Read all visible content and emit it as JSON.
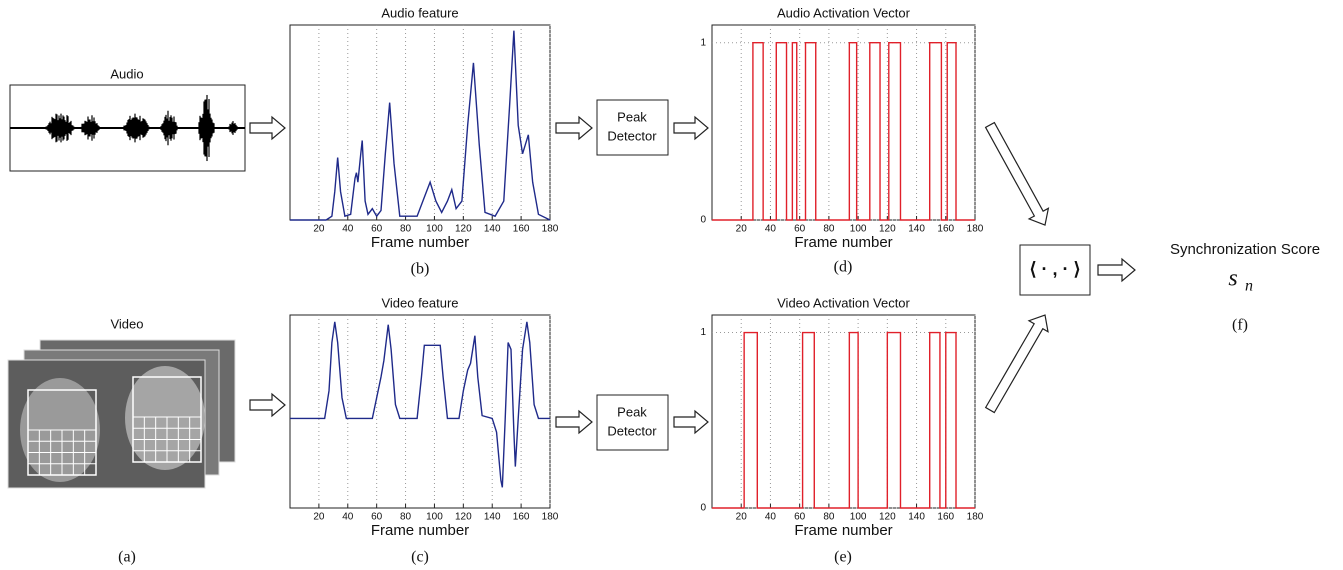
{
  "inputs": {
    "audio": "Audio",
    "video": "Video"
  },
  "panel_labels": [
    "(a)",
    "(b)",
    "(c)",
    "(d)",
    "(e)",
    "(f)"
  ],
  "peak_detectors": [
    [
      "Peak",
      "Detector"
    ],
    [
      "Peak",
      "Detector"
    ]
  ],
  "inner_product": "⟨ · , · ⟩",
  "score": {
    "label": "Synchronization Score",
    "symbol": "s",
    "subscript": "n"
  },
  "chart_data": [
    {
      "type": "line",
      "title": "Audio feature",
      "xlabel": "Frame number",
      "color": "#1f2a8a",
      "xlim": [
        0,
        180
      ],
      "ylim": [
        0,
        1.03
      ],
      "xticks": [
        20,
        40,
        60,
        80,
        100,
        120,
        140,
        160,
        180
      ],
      "grid": true,
      "x": [
        0,
        25,
        29,
        31,
        33,
        35,
        38,
        42,
        45,
        46,
        47,
        49,
        50,
        52,
        54,
        57,
        60,
        63,
        66,
        69,
        72,
        76,
        88,
        93,
        97,
        101,
        105,
        109,
        112,
        115,
        119,
        123,
        127,
        131,
        135,
        142,
        148,
        152,
        155,
        158,
        161,
        163,
        165,
        168,
        172,
        180
      ],
      "values": [
        0,
        0,
        0.02,
        0.15,
        0.33,
        0.15,
        0.02,
        0.03,
        0.22,
        0.25,
        0.2,
        0.35,
        0.42,
        0.1,
        0.03,
        0.06,
        0.02,
        0.05,
        0.35,
        0.62,
        0.3,
        0.02,
        0.02,
        0.12,
        0.2,
        0.1,
        0.04,
        0.1,
        0.16,
        0.06,
        0.1,
        0.5,
        0.83,
        0.4,
        0.04,
        0.02,
        0.1,
        0.6,
        1.0,
        0.5,
        0.35,
        0.4,
        0.45,
        0.2,
        0.03,
        0
      ]
    },
    {
      "type": "line",
      "title": "Video feature",
      "xlabel": "Frame number",
      "color": "#1f2a8a",
      "xlim": [
        0,
        180
      ],
      "ylim": [
        -0.35,
        1.05
      ],
      "xticks": [
        20,
        40,
        60,
        80,
        100,
        120,
        140,
        160,
        180
      ],
      "grid": true,
      "x": [
        0,
        24,
        27,
        29,
        31,
        33,
        36,
        39,
        57,
        60,
        63,
        65,
        68,
        70,
        73,
        76,
        88,
        91,
        93,
        104,
        106,
        109,
        117,
        120,
        123,
        125,
        128,
        130,
        133,
        140,
        143,
        146,
        147,
        149,
        151,
        153,
        155,
        156,
        158,
        161,
        164,
        166,
        169,
        172,
        180
      ],
      "values": [
        0.3,
        0.3,
        0.5,
        0.85,
        1.0,
        0.85,
        0.45,
        0.3,
        0.3,
        0.45,
        0.6,
        0.72,
        0.98,
        0.8,
        0.4,
        0.3,
        0.3,
        0.6,
        0.83,
        0.83,
        0.6,
        0.3,
        0.3,
        0.5,
        0.65,
        0.7,
        0.9,
        0.6,
        0.32,
        0.3,
        0.2,
        -0.15,
        -0.2,
        0.3,
        0.85,
        0.8,
        0.2,
        -0.05,
        0.3,
        0.8,
        1.0,
        0.85,
        0.4,
        0.3,
        0.3
      ]
    },
    {
      "type": "line",
      "title": "Audio Activation Vector",
      "xlabel": "Frame number",
      "color": "#e0202a",
      "xlim": [
        0,
        180
      ],
      "ylim": [
        0,
        1.1
      ],
      "xticks": [
        20,
        40,
        60,
        80,
        100,
        120,
        140,
        160,
        180
      ],
      "yticks": [
        0,
        1
      ],
      "grid": true,
      "x": [
        0,
        28,
        28,
        35,
        35,
        44,
        44,
        51,
        51,
        55,
        55,
        58,
        58,
        64,
        64,
        71,
        71,
        94,
        94,
        99,
        99,
        108,
        108,
        115,
        115,
        121,
        121,
        129,
        129,
        149,
        149,
        157,
        157,
        161,
        161,
        167,
        167,
        180
      ],
      "values": [
        0,
        0,
        1,
        1,
        0,
        0,
        1,
        1,
        0,
        0,
        1,
        1,
        0,
        0,
        1,
        1,
        0,
        0,
        1,
        1,
        0,
        0,
        1,
        1,
        0,
        0,
        1,
        1,
        0,
        0,
        1,
        1,
        0,
        0,
        1,
        1,
        0,
        0
      ]
    },
    {
      "type": "line",
      "title": "Video Activation Vector",
      "xlabel": "Frame number",
      "color": "#e0202a",
      "xlim": [
        0,
        180
      ],
      "ylim": [
        0,
        1.1
      ],
      "xticks": [
        20,
        40,
        60,
        80,
        100,
        120,
        140,
        160,
        180
      ],
      "yticks": [
        0,
        1
      ],
      "grid": true,
      "x": [
        0,
        22,
        22,
        31,
        31,
        62,
        62,
        70,
        70,
        94,
        94,
        100,
        100,
        120,
        120,
        129,
        129,
        149,
        149,
        156,
        156,
        160,
        160,
        167,
        167,
        180
      ],
      "values": [
        0,
        0,
        1,
        1,
        0,
        0,
        1,
        1,
        0,
        0,
        1,
        1,
        0,
        0,
        1,
        1,
        0,
        0,
        1,
        1,
        0,
        0,
        1,
        1,
        0,
        0
      ]
    }
  ]
}
